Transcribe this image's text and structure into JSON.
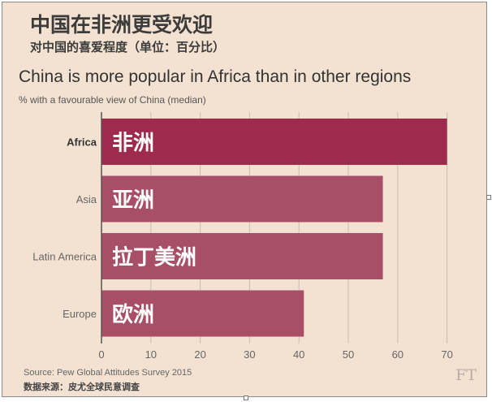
{
  "titles": {
    "cn_title": "中国在非洲更受欢迎",
    "cn_subtitle": "对中国的喜爱程度（单位：百分比）",
    "en_title": "China is more popular in Africa than in other regions",
    "en_subtitle": "% with a favourable view of China (median)"
  },
  "source": {
    "en": "Source: Pew Global Attitudes Survey 2015",
    "cn": "数据来源：皮尤全球民意调查"
  },
  "logo": "FT",
  "colors": {
    "background": "#f3e2d2",
    "highlight_bar": "#9e2a4e",
    "bar": "#a84e67",
    "gridline": "#c9bcb0"
  },
  "chart_data": {
    "type": "bar",
    "orientation": "horizontal",
    "categories": [
      "Africa",
      "Asia",
      "Latin America",
      "Europe"
    ],
    "bar_labels": [
      "非洲",
      "亚洲",
      "拉丁美洲",
      "欧洲"
    ],
    "values": [
      70,
      57,
      57,
      41
    ],
    "highlighted": "Africa",
    "xlim": [
      0,
      70
    ],
    "xticks": [
      0,
      10,
      20,
      30,
      40,
      50,
      60,
      70
    ],
    "grid": true
  }
}
